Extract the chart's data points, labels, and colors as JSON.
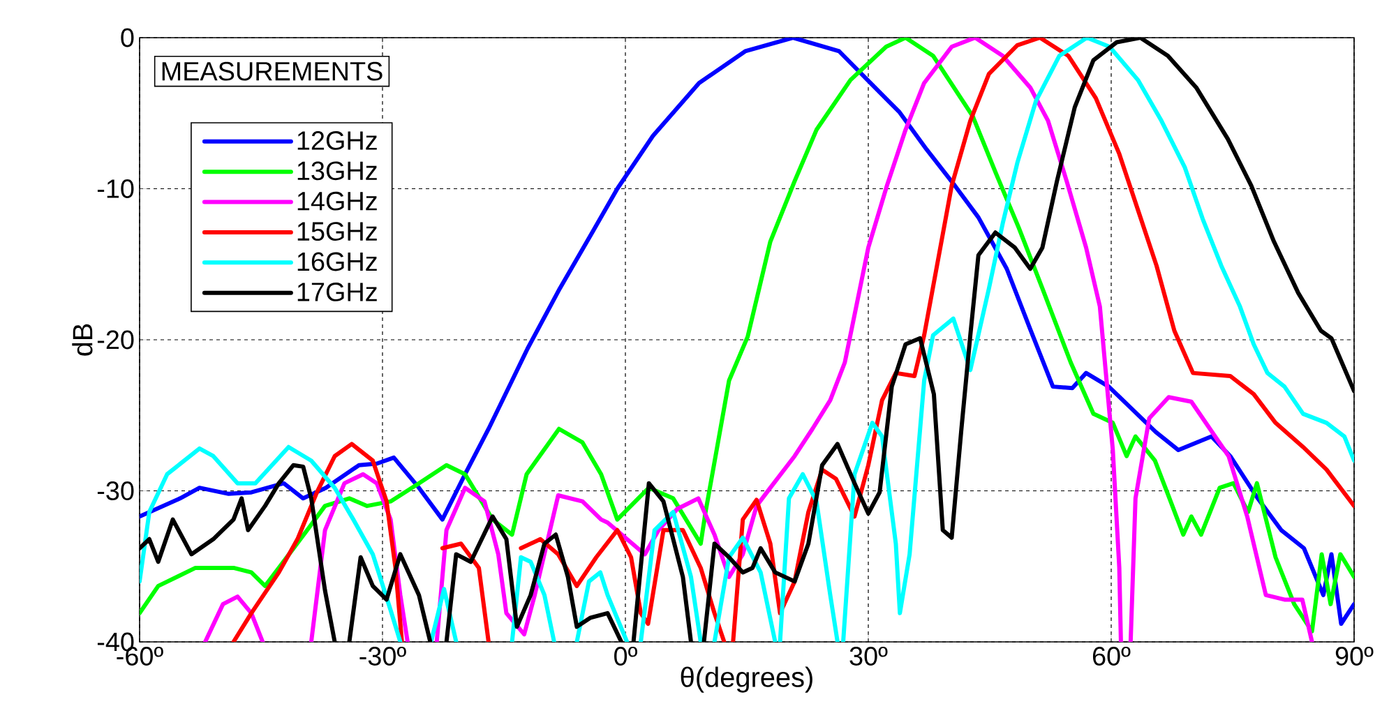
{
  "chart_data": {
    "type": "line",
    "xlabel": "θ(degrees)",
    "ylabel": "dB",
    "legend_title": "MEASUREMENTS",
    "legend": "top left",
    "grid": true,
    "xlim": [
      -60,
      90
    ],
    "ylim": [
      -40,
      0
    ],
    "xticks": [
      {
        "value": -60,
        "label": "-60º"
      },
      {
        "value": -30,
        "label": "-30º"
      },
      {
        "value": 0,
        "label": "0º"
      },
      {
        "value": 30,
        "label": "30º"
      },
      {
        "value": 60,
        "label": "60º"
      },
      {
        "value": 90,
        "label": "90º"
      }
    ],
    "yticks": [
      -40,
      -30,
      -20,
      -10,
      0
    ],
    "series": [
      {
        "name": "12GHz",
        "color": "#0000ff",
        "x": [
          -60,
          -55,
          -52.6,
          -49,
          -46.2,
          -42.2,
          -39.8,
          -37,
          -32.9,
          -30.7,
          -28.6,
          -25.5,
          -22.6,
          -19.8,
          -16.9,
          -14,
          -12.1,
          -8.1,
          -4.1,
          -1,
          3.4,
          9.1,
          14.8,
          20.7,
          26.4,
          29.9,
          33.8,
          37.2,
          40.7,
          43.6,
          47.1,
          50,
          52.8,
          55.2,
          56.9,
          59.7,
          62.6,
          65.5,
          68.3,
          72.4,
          74.7,
          78.1,
          81,
          83.8,
          86.2,
          87.2,
          88.4,
          90
        ],
        "values": [
          -31.7,
          -30.5,
          -29.8,
          -30.2,
          -30.1,
          -29.5,
          -30.5,
          -29.8,
          -28.3,
          -28.2,
          -27.8,
          -29.8,
          -31.9,
          -28.9,
          -25.9,
          -22.7,
          -20.6,
          -16.6,
          -12.9,
          -10,
          -6.5,
          -3,
          -0.9,
          0,
          -0.9,
          -2.8,
          -4.9,
          -7.4,
          -9.8,
          -11.9,
          -15.3,
          -19.3,
          -23.1,
          -23.2,
          -22.2,
          -23.1,
          -24.6,
          -26.1,
          -27.3,
          -26.4,
          -27.7,
          -30.5,
          -32.6,
          -33.8,
          -36.9,
          -34.2,
          -38.8,
          -37.5
        ]
      },
      {
        "name": "13GHz",
        "color": "#00ff00",
        "x": [
          -60,
          -57.7,
          -53.1,
          -48.4,
          -46.2,
          -44.5,
          -42.8,
          -39.3,
          -37.1,
          -34.1,
          -31.9,
          -29,
          -25.5,
          -22.1,
          -19.8,
          -16.4,
          -14,
          -12.2,
          -8.2,
          -5.3,
          -3,
          -1,
          2.9,
          5.9,
          9.3,
          9.9,
          12.8,
          15.1,
          17.9,
          20.9,
          23.6,
          27.8,
          32.2,
          34.6,
          38,
          42.9,
          45.7,
          48.6,
          51.5,
          55,
          57.8,
          60.2,
          61.9,
          63,
          65.4,
          67.2,
          68.9,
          69.9,
          71.1,
          73.4,
          75.1,
          76.9,
          78,
          80.3,
          82.6,
          84.8,
          86,
          87.1,
          88.3,
          90
        ],
        "values": [
          -38.1,
          -36.3,
          -35.1,
          -35.1,
          -35.4,
          -36.3,
          -35.1,
          -32.6,
          -31,
          -30.5,
          -31,
          -30.7,
          -29.5,
          -28.3,
          -28.9,
          -31.9,
          -32.9,
          -28.9,
          -25.9,
          -26.8,
          -28.9,
          -31.9,
          -29.8,
          -30.5,
          -33.5,
          -31.4,
          -22.7,
          -19.8,
          -13.5,
          -9.5,
          -6.1,
          -2.8,
          -0.6,
          0,
          -1.2,
          -5.2,
          -8.9,
          -12.6,
          -16.6,
          -21.5,
          -24.9,
          -25.5,
          -27.7,
          -26.4,
          -28,
          -30.5,
          -32.9,
          -31.7,
          -32.9,
          -29.8,
          -29.5,
          -31.4,
          -29.5,
          -34.4,
          -37.5,
          -39.3,
          -34.2,
          -37.5,
          -34.2,
          -35.7
        ]
      },
      {
        "name": "14GHz",
        "color": "#ff00ff",
        "x": [
          -51.9,
          -49.7,
          -47.9,
          -46.2,
          -44.8,
          -42,
          -38.8,
          -37.1,
          -34.7,
          -32.4,
          -30.7,
          -29,
          -27.8,
          -26.9,
          -25,
          -23.3,
          -22.1,
          -19.8,
          -17.4,
          -15.7,
          -14.7,
          -12.5,
          -11.2,
          -8.3,
          -5.3,
          -3,
          -2.2,
          0.2,
          2.4,
          4.1,
          6.4,
          9,
          11,
          12.8,
          14.5,
          16.2,
          17.9,
          20.9,
          23.1,
          25.3,
          27.1,
          30,
          32.3,
          34.6,
          36.9,
          40.3,
          43.2,
          46.6,
          50,
          52.2,
          54.5,
          56.9,
          58.6,
          60.2,
          61,
          61.2,
          61.8,
          62.4,
          63,
          64.7,
          67.1,
          69.9,
          72.2,
          74.5,
          76.8,
          79.1,
          81.4,
          83.6,
          84.8
        ],
        "values": [
          -40,
          -37.5,
          -37,
          -38.1,
          -40,
          null,
          -40,
          -32.6,
          -29.5,
          -28.9,
          -29.5,
          -31.9,
          -36.9,
          -40,
          null,
          -40,
          -32.6,
          -29.8,
          -30.7,
          -34.2,
          -38.1,
          -39.5,
          -36.9,
          -30.3,
          -30.7,
          -31.9,
          -32.1,
          -33.2,
          -34.2,
          -32.6,
          -31.2,
          -30.5,
          -32.9,
          -35.7,
          -34.2,
          -31,
          -29.8,
          -27.7,
          -25.9,
          -24,
          -21.5,
          -13.9,
          -9.8,
          -6.1,
          -3,
          -0.6,
          0,
          -1.2,
          -3.3,
          -5.5,
          -9.5,
          -13.9,
          -17.8,
          -27.3,
          -35.1,
          -40,
          null,
          -40,
          -30.5,
          -25.2,
          -23.8,
          -24.1,
          -25.9,
          -27.7,
          -31.7,
          -36.9,
          -37.2,
          -37.2,
          -40
        ]
      },
      {
        "name": "15GHz",
        "color": "#ff0000",
        "x": [
          -48.4,
          -46.2,
          -42.8,
          -40.5,
          -38.1,
          -35.9,
          -33.8,
          -31.2,
          -29.5,
          -28.4,
          -27.6,
          -25.8,
          -24.1,
          -22.6,
          -20.3,
          -18.1,
          -16.9,
          -15.5,
          -14,
          -12.9,
          -10.5,
          -8.3,
          -6,
          -3.6,
          -1,
          0.7,
          1.9,
          2.8,
          4.7,
          7.1,
          9.3,
          11,
          12.2,
          12.8,
          13.3,
          14.5,
          16.2,
          17.9,
          19.1,
          20.9,
          22.6,
          24.3,
          26,
          28.3,
          30,
          31.7,
          33.4,
          35.7,
          36.9,
          40.3,
          42.6,
          44.9,
          48.4,
          51.2,
          54.7,
          58.1,
          61,
          63.3,
          65.6,
          67.8,
          70.1,
          74.7,
          77.6,
          80.3,
          83.7,
          86.6,
          90
        ],
        "values": [
          -40,
          -38.1,
          -35.4,
          -33.2,
          -30.1,
          -27.7,
          -26.9,
          -28,
          -30.7,
          -35.1,
          -40,
          null,
          null,
          -33.8,
          -33.5,
          -35.1,
          -40,
          null,
          null,
          -33.8,
          -33.2,
          -34.2,
          -36.3,
          -34.4,
          -32.6,
          -34.4,
          -38.1,
          -38.8,
          -32.6,
          -32.6,
          -35.1,
          -38.1,
          -40,
          null,
          -40,
          -31.9,
          -30.6,
          -33.5,
          -38.1,
          -36,
          -31.4,
          -28.6,
          -29.2,
          -31.7,
          -28.3,
          -24,
          -22.2,
          -22.4,
          -19.7,
          -9.8,
          -5.5,
          -2.4,
          -0.5,
          0,
          -1.2,
          -4,
          -7.7,
          -11.4,
          -15.1,
          -19.4,
          -22.2,
          -22.4,
          -23.6,
          -25.5,
          -27.1,
          -28.6,
          -31
        ]
      },
      {
        "name": "16GHz",
        "color": "#00ffff",
        "x": [
          -60,
          -58.8,
          -56.6,
          -52.6,
          -50.9,
          -47.9,
          -45.7,
          -41.6,
          -38.8,
          -35.9,
          -33.6,
          -31.2,
          -29,
          -27.8,
          -26,
          -24,
          -22.4,
          -20.9,
          -17.5,
          -14,
          -12.9,
          -11.7,
          -10,
          -8.8,
          -7.4,
          -6,
          -4.5,
          -3.1,
          -2.2,
          0.2,
          1,
          1.9,
          3.6,
          5.9,
          8.1,
          9.3,
          10.2,
          11,
          12.8,
          14.5,
          16.7,
          18.5,
          18.8,
          19.1,
          20.2,
          21.9,
          23.6,
          25.3,
          26.2,
          26.5,
          26.9,
          28.3,
          30.5,
          31.7,
          33.4,
          33.9,
          35.1,
          36.9,
          38,
          40.5,
          42.6,
          43.2,
          44.9,
          46.6,
          48.4,
          50.7,
          53.6,
          57,
          59.8,
          63.3,
          66.2,
          69.1,
          71.3,
          73.6,
          75.9,
          77.6,
          79.3,
          81.4,
          83.7,
          86.6,
          88.8,
          90
        ],
        "values": [
          -36,
          -31.4,
          -28.9,
          -27.2,
          -27.7,
          -29.5,
          -29.5,
          -27.1,
          -28,
          -29.8,
          -31.9,
          -34.2,
          -37.9,
          -40,
          null,
          -40,
          -36.5,
          -40,
          null,
          -40,
          -34.4,
          -34.7,
          -36.9,
          -40,
          null,
          -40,
          -36,
          -35.4,
          -36.9,
          -40,
          null,
          -40,
          -32.6,
          -31.4,
          -35.7,
          -40,
          null,
          -40,
          -34.4,
          -33.1,
          -35.4,
          -40,
          null,
          -40,
          -30.5,
          -28.9,
          -30.7,
          -36.9,
          -40,
          null,
          -40,
          -28.9,
          -25.5,
          -26.4,
          -33.5,
          -38.1,
          -34.2,
          -22.7,
          -19.7,
          -18.6,
          -22,
          -20.6,
          -16.6,
          -12.3,
          -8.3,
          -4.2,
          -1.2,
          0,
          -0.6,
          -2.8,
          -5.5,
          -8.6,
          -12,
          -15.1,
          -17.8,
          -20.3,
          -22.2,
          -23.1,
          -24.9,
          -25.5,
          -26.4,
          -28
        ]
      },
      {
        "name": "17GHz",
        "color": "#000000",
        "x": [
          -60,
          -58.8,
          -57.7,
          -55.9,
          -53.6,
          -50.9,
          -48.4,
          -47.4,
          -46.6,
          -44.5,
          -42.8,
          -41,
          -39.8,
          -38.8,
          -37.1,
          -35.9,
          -35,
          -34.1,
          -32.7,
          -31.2,
          -29.5,
          -27.8,
          -25.5,
          -24.1,
          -23,
          -22.1,
          -20.9,
          -19.1,
          -16.4,
          -14.7,
          -13.4,
          -11.7,
          -10,
          -8.6,
          -7.1,
          -6,
          -4.3,
          -2.2,
          -0.5,
          0.2,
          1,
          2.9,
          4.7,
          7.1,
          8.1,
          8.9,
          9.7,
          11,
          12.8,
          14.5,
          15.7,
          16.7,
          18.5,
          20.9,
          22.6,
          24.3,
          26.2,
          28.3,
          30,
          31.4,
          32.9,
          34.6,
          36.4,
          38.1,
          39.2,
          40.3,
          41.5,
          42.6,
          43.6,
          45.7,
          48.1,
          50,
          51.5,
          53.3,
          55.5,
          57.8,
          60.7,
          63.6,
          67,
          70.5,
          74.4,
          77.3,
          80.1,
          83.1,
          85.9,
          87.2,
          90
        ],
        "values": [
          -33.8,
          -33.2,
          -34.7,
          -31.9,
          -34.2,
          -33.2,
          -31.9,
          -30.5,
          -32.6,
          -31,
          -29.5,
          -28.3,
          -28.4,
          -30.5,
          -36.6,
          -40,
          null,
          -40,
          -34.4,
          -36.3,
          -37.2,
          -34.2,
          -36.9,
          -40,
          null,
          -40,
          -34.2,
          -34.7,
          -31.7,
          -33.2,
          -39,
          -36.9,
          -33.5,
          -32.9,
          -35.7,
          -39,
          -38.4,
          -38.1,
          -40,
          null,
          -40,
          -29.5,
          -30.7,
          -35.7,
          -40,
          null,
          -40,
          -33.5,
          -34.4,
          -35.4,
          -35.1,
          -33.8,
          -35.4,
          -36,
          -33.5,
          -28.3,
          -26.9,
          -29.5,
          -31.5,
          -30.1,
          -23.1,
          -20.3,
          -19.9,
          -23.6,
          -32.6,
          -33.1,
          -25.9,
          -19.7,
          -14.4,
          -12.9,
          -13.9,
          -15.3,
          -13.9,
          -9.5,
          -4.6,
          -1.5,
          -0.3,
          0,
          -1.2,
          -3.3,
          -6.7,
          -9.8,
          -13.5,
          -16.9,
          -19.4,
          -19.9,
          -23.4
        ]
      }
    ]
  }
}
